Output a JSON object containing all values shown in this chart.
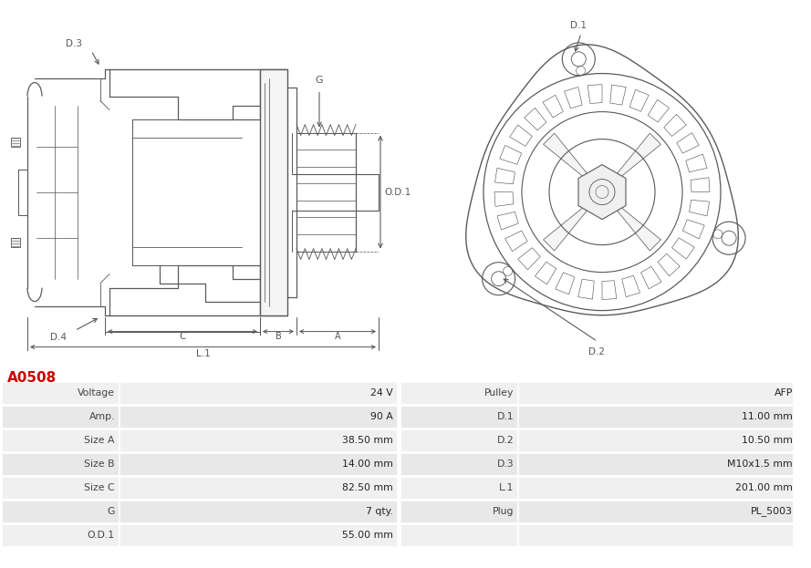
{
  "title": "A0508",
  "title_color": "#cc0000",
  "bg_color": "#ffffff",
  "table_row_colors": [
    "#f0f0f0",
    "#e8e8e8"
  ],
  "table_border_color": "#ffffff",
  "left_col": [
    "Voltage",
    "Amp.",
    "Size A",
    "Size B",
    "Size C",
    "G",
    "O.D.1"
  ],
  "left_val": [
    "24 V",
    "90 A",
    "38.50 mm",
    "14.00 mm",
    "82.50 mm",
    "7 qty.",
    "55.00 mm"
  ],
  "right_col": [
    "Pulley",
    "D.1",
    "D.2",
    "D.3",
    "L.1",
    "Plug",
    ""
  ],
  "right_val": [
    "AFP",
    "11.00 mm",
    "10.50 mm",
    "M10x1.5 mm",
    "201.00 mm",
    "PL_5003",
    ""
  ],
  "lc": "#5a5a5a",
  "lw": 0.9
}
